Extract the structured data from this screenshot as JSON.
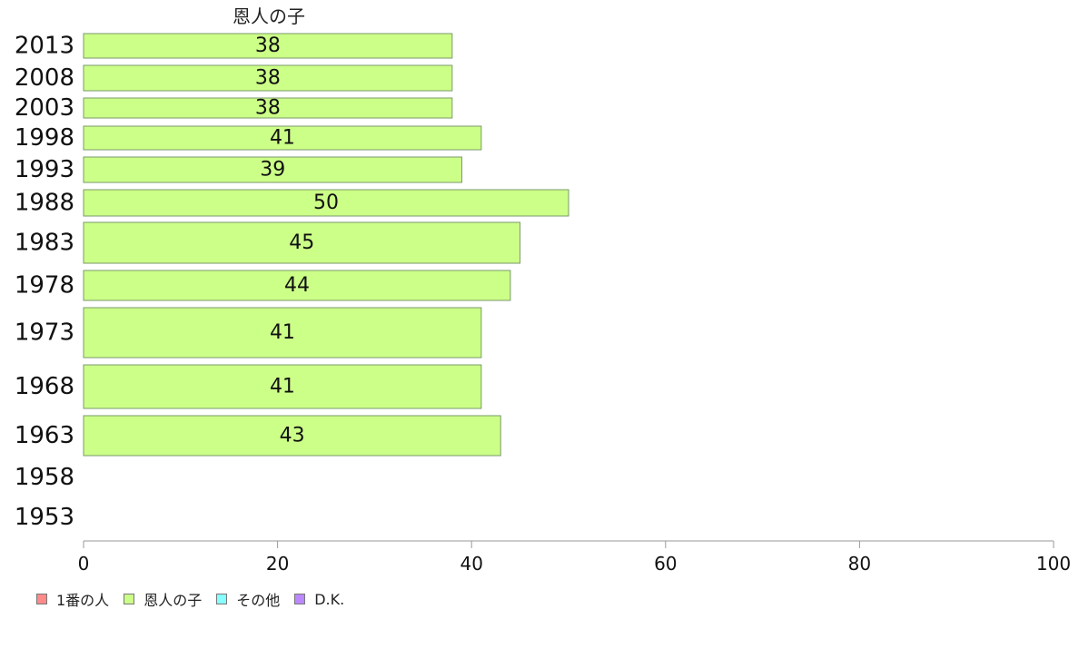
{
  "chart_data": {
    "type": "bar",
    "orientation": "horizontal",
    "panel_title": "恩人の子",
    "categories": [
      "2013",
      "2008",
      "2003",
      "1998",
      "1993",
      "1988",
      "1983",
      "1978",
      "1973",
      "1968",
      "1963",
      "1958",
      "1953"
    ],
    "series": [
      {
        "name": "1番の人",
        "color": "#ff8a8a",
        "values": [
          null,
          null,
          null,
          null,
          null,
          null,
          null,
          null,
          null,
          null,
          null,
          null,
          null
        ]
      },
      {
        "name": "恩人の子",
        "color": "#ccff88",
        "values": [
          38,
          38,
          38,
          41,
          39,
          50,
          45,
          44,
          41,
          41,
          43,
          null,
          null
        ]
      },
      {
        "name": "その他",
        "color": "#88ffff",
        "values": [
          null,
          null,
          null,
          null,
          null,
          null,
          null,
          null,
          null,
          null,
          null,
          null,
          null
        ]
      },
      {
        "name": "D.K.",
        "color": "#bb88ff",
        "values": [
          null,
          null,
          null,
          null,
          null,
          null,
          null,
          null,
          null,
          null,
          null,
          null,
          null
        ]
      }
    ],
    "value_labels": [
      "38",
      "38",
      "38",
      "41",
      "39",
      "50",
      "45",
      "44",
      "41",
      "41",
      "43",
      "",
      ""
    ],
    "xlim": [
      0,
      100
    ],
    "xticks": [
      0,
      20,
      40,
      60,
      80,
      100
    ],
    "grid": false,
    "legend_position": "bottom-left"
  }
}
